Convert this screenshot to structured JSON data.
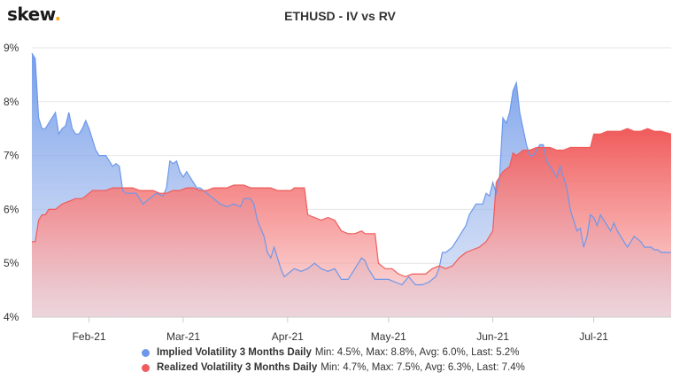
{
  "header": {
    "logo_text": "skew",
    "logo_dot": "."
  },
  "chart_data": {
    "type": "area",
    "title": "ETHUSD - IV vs RV",
    "xlabel": "",
    "ylabel": "",
    "x_range": [
      "2021-01-15",
      "2021-07-24"
    ],
    "ylim": [
      4,
      9
    ],
    "y_ticks": [
      4,
      5,
      6,
      7,
      8,
      9
    ],
    "y_tick_labels": [
      "4%",
      "5%",
      "6%",
      "7%",
      "8%",
      "9%"
    ],
    "x_ticks": [
      "2021-02-01",
      "2021-03-01",
      "2021-04-01",
      "2021-05-01",
      "2021-06-01",
      "2021-07-01"
    ],
    "x_tick_labels": [
      "Feb-21",
      "Mar-21",
      "Apr-21",
      "May-21",
      "Jun-21",
      "Jul-21"
    ],
    "grid": "horizontal",
    "legend_position": "bottom",
    "series": [
      {
        "name": "Implied Volatility 3 Months Daily",
        "stats": "Min: 4.5%, Max: 8.8%, Avg: 6.0%, Last: 5.2%",
        "color": "#6d98ea",
        "points": [
          [
            "2021-01-15",
            8.9
          ],
          [
            "2021-01-16",
            8.8
          ],
          [
            "2021-01-17",
            7.7
          ],
          [
            "2021-01-18",
            7.5
          ],
          [
            "2021-01-19",
            7.5
          ],
          [
            "2021-01-20",
            7.6
          ],
          [
            "2021-01-21",
            7.7
          ],
          [
            "2021-01-22",
            7.8
          ],
          [
            "2021-01-23",
            7.4
          ],
          [
            "2021-01-24",
            7.5
          ],
          [
            "2021-01-25",
            7.55
          ],
          [
            "2021-01-26",
            7.8
          ],
          [
            "2021-01-27",
            7.5
          ],
          [
            "2021-01-28",
            7.4
          ],
          [
            "2021-01-29",
            7.4
          ],
          [
            "2021-01-30",
            7.5
          ],
          [
            "2021-01-31",
            7.65
          ],
          [
            "2021-02-01",
            7.5
          ],
          [
            "2021-02-02",
            7.3
          ],
          [
            "2021-02-03",
            7.1
          ],
          [
            "2021-02-04",
            7.0
          ],
          [
            "2021-02-05",
            7.0
          ],
          [
            "2021-02-06",
            7.0
          ],
          [
            "2021-02-07",
            6.9
          ],
          [
            "2021-02-08",
            6.8
          ],
          [
            "2021-02-09",
            6.85
          ],
          [
            "2021-02-10",
            6.8
          ],
          [
            "2021-02-11",
            6.35
          ],
          [
            "2021-02-12",
            6.3
          ],
          [
            "2021-02-15",
            6.3
          ],
          [
            "2021-02-17",
            6.1
          ],
          [
            "2021-02-19",
            6.2
          ],
          [
            "2021-02-21",
            6.3
          ],
          [
            "2021-02-23",
            6.25
          ],
          [
            "2021-02-24",
            6.4
          ],
          [
            "2021-02-25",
            6.9
          ],
          [
            "2021-02-26",
            6.85
          ],
          [
            "2021-02-27",
            6.9
          ],
          [
            "2021-02-28",
            6.7
          ],
          [
            "2021-03-01",
            6.6
          ],
          [
            "2021-03-02",
            6.7
          ],
          [
            "2021-03-03",
            6.6
          ],
          [
            "2021-03-04",
            6.5
          ],
          [
            "2021-03-05",
            6.4
          ],
          [
            "2021-03-06",
            6.4
          ],
          [
            "2021-03-08",
            6.3
          ],
          [
            "2021-03-10",
            6.2
          ],
          [
            "2021-03-12",
            6.1
          ],
          [
            "2021-03-14",
            6.05
          ],
          [
            "2021-03-16",
            6.1
          ],
          [
            "2021-03-18",
            6.05
          ],
          [
            "2021-03-19",
            6.2
          ],
          [
            "2021-03-21",
            6.2
          ],
          [
            "2021-03-22",
            6.1
          ],
          [
            "2021-03-23",
            5.8
          ],
          [
            "2021-03-25",
            5.5
          ],
          [
            "2021-03-26",
            5.2
          ],
          [
            "2021-03-27",
            5.1
          ],
          [
            "2021-03-28",
            5.3
          ],
          [
            "2021-03-30",
            4.9
          ],
          [
            "2021-03-31",
            4.75
          ],
          [
            "2021-04-01",
            4.8
          ],
          [
            "2021-04-03",
            4.9
          ],
          [
            "2021-04-05",
            4.85
          ],
          [
            "2021-04-07",
            4.9
          ],
          [
            "2021-04-09",
            5.0
          ],
          [
            "2021-04-11",
            4.9
          ],
          [
            "2021-04-13",
            4.85
          ],
          [
            "2021-04-15",
            4.9
          ],
          [
            "2021-04-17",
            4.7
          ],
          [
            "2021-04-19",
            4.7
          ],
          [
            "2021-04-21",
            4.9
          ],
          [
            "2021-04-23",
            5.1
          ],
          [
            "2021-04-24",
            5.05
          ],
          [
            "2021-04-25",
            4.9
          ],
          [
            "2021-04-27",
            4.7
          ],
          [
            "2021-04-29",
            4.7
          ],
          [
            "2021-05-01",
            4.7
          ],
          [
            "2021-05-03",
            4.65
          ],
          [
            "2021-05-05",
            4.6
          ],
          [
            "2021-05-07",
            4.75
          ],
          [
            "2021-05-09",
            4.6
          ],
          [
            "2021-05-11",
            4.6
          ],
          [
            "2021-05-13",
            4.65
          ],
          [
            "2021-05-15",
            4.75
          ],
          [
            "2021-05-16",
            4.9
          ],
          [
            "2021-05-17",
            5.2
          ],
          [
            "2021-05-18",
            5.2
          ],
          [
            "2021-05-20",
            5.3
          ],
          [
            "2021-05-22",
            5.5
          ],
          [
            "2021-05-24",
            5.7
          ],
          [
            "2021-05-25",
            5.9
          ],
          [
            "2021-05-27",
            6.1
          ],
          [
            "2021-05-29",
            6.1
          ],
          [
            "2021-05-30",
            6.3
          ],
          [
            "2021-05-31",
            6.25
          ],
          [
            "2021-06-01",
            6.5
          ],
          [
            "2021-06-02",
            6.3
          ],
          [
            "2021-06-03",
            6.6
          ],
          [
            "2021-06-04",
            7.7
          ],
          [
            "2021-06-05",
            7.6
          ],
          [
            "2021-06-06",
            7.8
          ],
          [
            "2021-06-07",
            8.2
          ],
          [
            "2021-06-08",
            8.35
          ],
          [
            "2021-06-09",
            7.8
          ],
          [
            "2021-06-10",
            7.5
          ],
          [
            "2021-06-11",
            7.2
          ],
          [
            "2021-06-12",
            7.0
          ],
          [
            "2021-06-13",
            7.0
          ],
          [
            "2021-06-14",
            7.1
          ],
          [
            "2021-06-15",
            7.2
          ],
          [
            "2021-06-16",
            7.2
          ],
          [
            "2021-06-17",
            6.9
          ],
          [
            "2021-06-18",
            6.8
          ],
          [
            "2021-06-19",
            6.7
          ],
          [
            "2021-06-20",
            6.6
          ],
          [
            "2021-06-21",
            6.8
          ],
          [
            "2021-06-22",
            6.6
          ],
          [
            "2021-06-23",
            6.4
          ],
          [
            "2021-06-24",
            6.0
          ],
          [
            "2021-06-25",
            5.8
          ],
          [
            "2021-06-26",
            5.6
          ],
          [
            "2021-06-27",
            5.65
          ],
          [
            "2021-06-28",
            5.3
          ],
          [
            "2021-06-29",
            5.5
          ],
          [
            "2021-06-30",
            5.9
          ],
          [
            "2021-07-01",
            5.85
          ],
          [
            "2021-07-02",
            5.7
          ],
          [
            "2021-07-03",
            5.9
          ],
          [
            "2021-07-04",
            5.8
          ],
          [
            "2021-07-05",
            5.7
          ],
          [
            "2021-07-06",
            5.6
          ],
          [
            "2021-07-07",
            5.75
          ],
          [
            "2021-07-08",
            5.6
          ],
          [
            "2021-07-09",
            5.5
          ],
          [
            "2021-07-10",
            5.4
          ],
          [
            "2021-07-11",
            5.3
          ],
          [
            "2021-07-12",
            5.4
          ],
          [
            "2021-07-13",
            5.5
          ],
          [
            "2021-07-14",
            5.45
          ],
          [
            "2021-07-15",
            5.4
          ],
          [
            "2021-07-16",
            5.3
          ],
          [
            "2021-07-17",
            5.3
          ],
          [
            "2021-07-18",
            5.3
          ],
          [
            "2021-07-19",
            5.25
          ],
          [
            "2021-07-20",
            5.25
          ],
          [
            "2021-07-21",
            5.2
          ],
          [
            "2021-07-22",
            5.2
          ],
          [
            "2021-07-23",
            5.2
          ],
          [
            "2021-07-24",
            5.2
          ]
        ]
      },
      {
        "name": "Realized Volatility 3 Months Daily",
        "stats": "Min: 4.7%, Max: 7.5%, Avg: 6.3%, Last: 7.4%",
        "color": "#f05b5b",
        "points": [
          [
            "2021-01-15",
            5.4
          ],
          [
            "2021-01-16",
            5.4
          ],
          [
            "2021-01-17",
            5.8
          ],
          [
            "2021-01-18",
            5.9
          ],
          [
            "2021-01-19",
            5.9
          ],
          [
            "2021-01-20",
            6.0
          ],
          [
            "2021-01-22",
            6.0
          ],
          [
            "2021-01-24",
            6.1
          ],
          [
            "2021-01-26",
            6.15
          ],
          [
            "2021-01-28",
            6.2
          ],
          [
            "2021-01-30",
            6.2
          ],
          [
            "2021-02-01",
            6.3
          ],
          [
            "2021-02-02",
            6.35
          ],
          [
            "2021-02-04",
            6.35
          ],
          [
            "2021-02-06",
            6.35
          ],
          [
            "2021-02-08",
            6.4
          ],
          [
            "2021-02-10",
            6.4
          ],
          [
            "2021-02-12",
            6.4
          ],
          [
            "2021-02-14",
            6.4
          ],
          [
            "2021-02-16",
            6.35
          ],
          [
            "2021-02-18",
            6.35
          ],
          [
            "2021-02-20",
            6.35
          ],
          [
            "2021-02-22",
            6.3
          ],
          [
            "2021-02-24",
            6.3
          ],
          [
            "2021-02-26",
            6.35
          ],
          [
            "2021-02-28",
            6.35
          ],
          [
            "2021-03-02",
            6.4
          ],
          [
            "2021-03-04",
            6.4
          ],
          [
            "2021-03-06",
            6.35
          ],
          [
            "2021-03-08",
            6.35
          ],
          [
            "2021-03-10",
            6.4
          ],
          [
            "2021-03-12",
            6.4
          ],
          [
            "2021-03-14",
            6.4
          ],
          [
            "2021-03-16",
            6.45
          ],
          [
            "2021-03-19",
            6.45
          ],
          [
            "2021-03-21",
            6.4
          ],
          [
            "2021-03-23",
            6.4
          ],
          [
            "2021-03-25",
            6.4
          ],
          [
            "2021-03-27",
            6.4
          ],
          [
            "2021-03-29",
            6.35
          ],
          [
            "2021-03-31",
            6.35
          ],
          [
            "2021-04-02",
            6.35
          ],
          [
            "2021-04-03",
            6.4
          ],
          [
            "2021-04-06",
            6.4
          ],
          [
            "2021-04-07",
            5.9
          ],
          [
            "2021-04-09",
            5.85
          ],
          [
            "2021-04-11",
            5.8
          ],
          [
            "2021-04-13",
            5.85
          ],
          [
            "2021-04-15",
            5.8
          ],
          [
            "2021-04-17",
            5.6
          ],
          [
            "2021-04-19",
            5.55
          ],
          [
            "2021-04-21",
            5.55
          ],
          [
            "2021-04-23",
            5.6
          ],
          [
            "2021-04-24",
            5.55
          ],
          [
            "2021-04-27",
            5.55
          ],
          [
            "2021-04-28",
            5.0
          ],
          [
            "2021-04-30",
            4.9
          ],
          [
            "2021-05-02",
            4.9
          ],
          [
            "2021-05-04",
            4.8
          ],
          [
            "2021-05-06",
            4.75
          ],
          [
            "2021-05-08",
            4.8
          ],
          [
            "2021-05-10",
            4.8
          ],
          [
            "2021-05-12",
            4.8
          ],
          [
            "2021-05-14",
            4.9
          ],
          [
            "2021-05-16",
            4.95
          ],
          [
            "2021-05-18",
            4.9
          ],
          [
            "2021-05-20",
            4.95
          ],
          [
            "2021-05-22",
            5.1
          ],
          [
            "2021-05-24",
            5.2
          ],
          [
            "2021-05-26",
            5.25
          ],
          [
            "2021-05-28",
            5.3
          ],
          [
            "2021-05-30",
            5.4
          ],
          [
            "2021-06-01",
            5.6
          ],
          [
            "2021-06-02",
            6.5
          ],
          [
            "2021-06-04",
            6.7
          ],
          [
            "2021-06-06",
            6.8
          ],
          [
            "2021-06-07",
            7.05
          ],
          [
            "2021-06-08",
            7.0
          ],
          [
            "2021-06-10",
            7.1
          ],
          [
            "2021-06-12",
            7.1
          ],
          [
            "2021-06-14",
            7.15
          ],
          [
            "2021-06-16",
            7.15
          ],
          [
            "2021-06-18",
            7.15
          ],
          [
            "2021-06-20",
            7.1
          ],
          [
            "2021-06-22",
            7.1
          ],
          [
            "2021-06-24",
            7.15
          ],
          [
            "2021-06-26",
            7.15
          ],
          [
            "2021-06-28",
            7.15
          ],
          [
            "2021-06-30",
            7.15
          ],
          [
            "2021-07-01",
            7.4
          ],
          [
            "2021-07-03",
            7.4
          ],
          [
            "2021-07-05",
            7.45
          ],
          [
            "2021-07-07",
            7.45
          ],
          [
            "2021-07-09",
            7.45
          ],
          [
            "2021-07-11",
            7.5
          ],
          [
            "2021-07-13",
            7.45
          ],
          [
            "2021-07-15",
            7.45
          ],
          [
            "2021-07-17",
            7.5
          ],
          [
            "2021-07-19",
            7.45
          ],
          [
            "2021-07-21",
            7.45
          ],
          [
            "2021-07-24",
            7.4
          ]
        ]
      }
    ]
  }
}
